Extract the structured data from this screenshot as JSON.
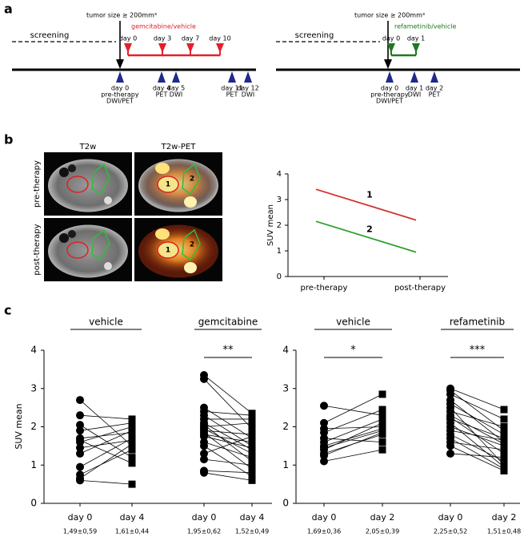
{
  "panel_labels": [
    "a",
    "b",
    "c"
  ],
  "timelines": [
    {
      "tumor_size": "tumor size ≥ 200mm³",
      "screening": "screening",
      "treatment": "gemcitabine/vehicle",
      "color": "#e3212b",
      "doses": [
        "day 0",
        "day 3",
        "day 7",
        "day 10"
      ],
      "imaging": [
        {
          "day": "day 0",
          "note": "pre-therapy",
          "modality": "DWI/PET"
        },
        {
          "day": "day 4",
          "modality": "PET"
        },
        {
          "day": "day 5",
          "modality": "DWI"
        },
        {
          "day": "day 11",
          "modality": "PET"
        },
        {
          "day": "day 12",
          "modality": "DWI"
        }
      ]
    },
    {
      "tumor_size": "tumor size ≥ 200mm³",
      "screening": "screening",
      "treatment": "refametinib/vehicle",
      "color": "#1e7a22",
      "doses": [
        "day 0",
        "day 1"
      ],
      "imaging": [
        {
          "day": "day 0",
          "note": "pre-therapy",
          "modality": "DWI/PET"
        },
        {
          "day": "day 1",
          "modality": "DWI"
        },
        {
          "day": "day 2",
          "modality": "PET"
        }
      ]
    }
  ],
  "images": {
    "columns": [
      "T2w",
      "T2w-PET"
    ],
    "rows": [
      "pre-therapy",
      "post-therapy"
    ],
    "roi_labels": [
      "1",
      "2"
    ]
  },
  "chart_data": [
    {
      "type": "line",
      "ylabel": "SUV mean",
      "categories": [
        "pre-therapy",
        "post-therapy"
      ],
      "ylim": [
        0,
        4
      ],
      "yticks": [
        0,
        1,
        2,
        3,
        4
      ],
      "series": [
        {
          "name": "1",
          "color": "#d2322d",
          "values": [
            3.4,
            2.2
          ]
        },
        {
          "name": "2",
          "color": "#2ca02c",
          "values": [
            2.15,
            0.95
          ]
        }
      ]
    },
    {
      "type": "paired",
      "ylabel": "SUV mean",
      "ylim": [
        0,
        4
      ],
      "yticks": [
        0,
        1,
        2,
        3,
        4
      ],
      "groups": [
        {
          "title": "vehicle",
          "categories": [
            "day 0",
            "day 4"
          ],
          "summaries": [
            "1,49±0,59",
            "1,61±0,44"
          ],
          "values": [
            [
              2.7,
              2.3,
              2.05,
              1.9,
              1.7,
              1.65,
              1.6,
              1.45,
              1.3,
              0.95,
              0.75,
              0.65,
              0.6
            ],
            [
              1.5,
              2.2,
              1.2,
              2.1,
              1.85,
              1.05,
              2.0,
              1.65,
              1.9,
              1.7,
              1.4,
              1.55,
              0.5
            ]
          ]
        },
        {
          "title": "gemcitabine",
          "significance": "**",
          "categories": [
            "day 0",
            "day 4"
          ],
          "summaries": [
            "1,95±0,62",
            "1,52±0,49"
          ],
          "values": [
            [
              3.35,
              3.25,
              2.5,
              2.4,
              2.3,
              2.2,
              2.1,
              2.05,
              2.0,
              1.95,
              1.9,
              1.85,
              1.8,
              1.75,
              1.6,
              1.5,
              1.3,
              1.15,
              0.85,
              0.8
            ],
            [
              2.35,
              1.95,
              1.7,
              2.3,
              1.5,
              2.2,
              1.4,
              1.1,
              2.1,
              1.3,
              1.8,
              0.9,
              1.6,
              1.45,
              1.2,
              0.7,
              1.75,
              1.0,
              0.8,
              0.6
            ]
          ]
        }
      ]
    },
    {
      "type": "paired",
      "ylim": [
        0,
        4
      ],
      "yticks": [
        0,
        1,
        2,
        3,
        4
      ],
      "groups": [
        {
          "title": "vehicle",
          "significance": "*",
          "categories": [
            "day 0",
            "day 2"
          ],
          "summaries": [
            "1,69±0,36",
            "2,05±0,39"
          ],
          "values": [
            [
              2.55,
              2.1,
              1.95,
              1.85,
              1.7,
              1.6,
              1.5,
              1.45,
              1.4,
              1.3,
              1.25,
              1.1
            ],
            [
              2.3,
              2.85,
              2.0,
              2.45,
              1.6,
              2.2,
              1.95,
              1.9,
              2.1,
              1.8,
              1.85,
              1.4
            ]
          ]
        },
        {
          "title": "refametinib",
          "significance": "***",
          "categories": [
            "day 0",
            "day 2"
          ],
          "summaries": [
            "2,25±0,52",
            "1,51±0,48"
          ],
          "values": [
            [
              3.0,
              2.95,
              2.85,
              2.7,
              2.6,
              2.5,
              2.4,
              2.3,
              2.25,
              2.2,
              2.1,
              2.0,
              1.9,
              1.8,
              1.7,
              1.6,
              1.5,
              1.3
            ],
            [
              2.45,
              1.9,
              2.2,
              1.6,
              1.8,
              1.0,
              2.0,
              1.55,
              1.3,
              1.7,
              0.95,
              1.5,
              1.65,
              1.1,
              0.9,
              1.4,
              0.85,
              1.2
            ]
          ]
        }
      ]
    }
  ]
}
